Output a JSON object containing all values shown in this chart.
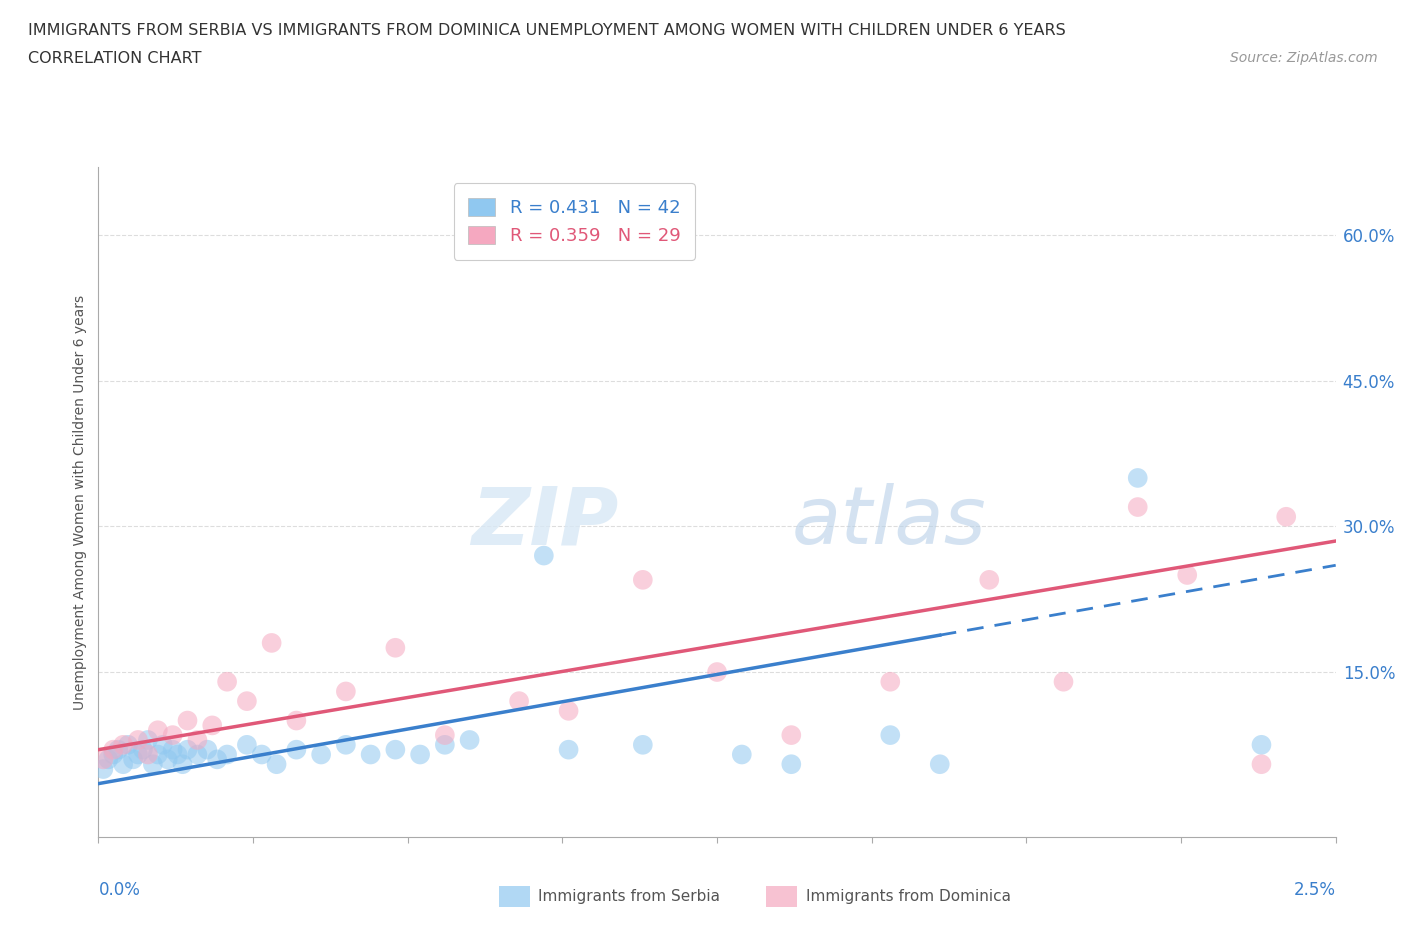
{
  "title_line1": "IMMIGRANTS FROM SERBIA VS IMMIGRANTS FROM DOMINICA UNEMPLOYMENT AMONG WOMEN WITH CHILDREN UNDER 6 YEARS",
  "title_line2": "CORRELATION CHART",
  "source_text": "Source: ZipAtlas.com",
  "ylabel": "Unemployment Among Women with Children Under 6 years",
  "ytick_labels": [
    "60.0%",
    "45.0%",
    "30.0%",
    "15.0%"
  ],
  "ytick_values": [
    0.6,
    0.45,
    0.3,
    0.15
  ],
  "xtick_labels": [
    "0.0%",
    "2.5%"
  ],
  "xmin": 0.0,
  "xmax": 0.025,
  "ymin": -0.02,
  "ymax": 0.67,
  "legend_serbia": "R = 0.431   N = 42",
  "legend_dominica": "R = 0.359   N = 29",
  "color_serbia": "#90C8F0",
  "color_dominica": "#F5A8C0",
  "color_serbia_line": "#3A7FCC",
  "color_dominica_line": "#E05878",
  "watermark_zip": "ZIP",
  "watermark_atlas": "atlas",
  "serbia_x": [
    0.0001,
    0.0002,
    0.0003,
    0.0004,
    0.0005,
    0.0006,
    0.0007,
    0.0008,
    0.0009,
    0.001,
    0.0011,
    0.0012,
    0.0013,
    0.0014,
    0.0015,
    0.0016,
    0.0017,
    0.0018,
    0.002,
    0.0022,
    0.0024,
    0.0026,
    0.003,
    0.0033,
    0.0036,
    0.004,
    0.0045,
    0.005,
    0.0055,
    0.006,
    0.0065,
    0.007,
    0.0075,
    0.009,
    0.0095,
    0.011,
    0.013,
    0.014,
    0.016,
    0.017,
    0.021,
    0.0235
  ],
  "serbia_y": [
    0.05,
    0.06,
    0.065,
    0.07,
    0.055,
    0.075,
    0.06,
    0.065,
    0.07,
    0.08,
    0.055,
    0.065,
    0.075,
    0.06,
    0.07,
    0.065,
    0.055,
    0.07,
    0.065,
    0.07,
    0.06,
    0.065,
    0.075,
    0.065,
    0.055,
    0.07,
    0.065,
    0.075,
    0.065,
    0.07,
    0.065,
    0.075,
    0.08,
    0.27,
    0.07,
    0.075,
    0.065,
    0.055,
    0.085,
    0.055,
    0.35,
    0.075
  ],
  "dominica_x": [
    0.0001,
    0.0003,
    0.0005,
    0.0008,
    0.001,
    0.0012,
    0.0015,
    0.0018,
    0.002,
    0.0023,
    0.0026,
    0.003,
    0.0035,
    0.004,
    0.005,
    0.006,
    0.007,
    0.0085,
    0.0095,
    0.011,
    0.0125,
    0.014,
    0.016,
    0.018,
    0.0195,
    0.021,
    0.022,
    0.0235,
    0.024
  ],
  "dominica_y": [
    0.06,
    0.07,
    0.075,
    0.08,
    0.065,
    0.09,
    0.085,
    0.1,
    0.08,
    0.095,
    0.14,
    0.12,
    0.18,
    0.1,
    0.13,
    0.175,
    0.085,
    0.12,
    0.11,
    0.245,
    0.15,
    0.085,
    0.14,
    0.245,
    0.14,
    0.32,
    0.25,
    0.055,
    0.31
  ],
  "grid_color": "#dddddd",
  "grid_style": "--",
  "spine_color": "#aaaaaa"
}
